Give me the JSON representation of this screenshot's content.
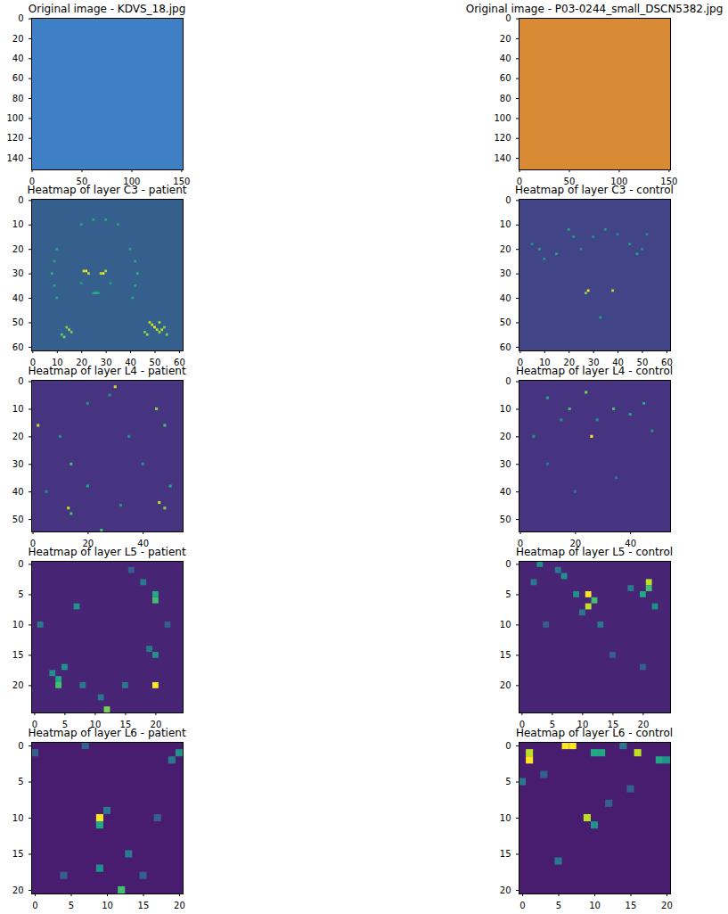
{
  "chart_data": [
    {
      "type": "image",
      "title": "Original image - KDVS_18.jpg",
      "color": "#3f7fc4",
      "xlim": [
        -0.5,
        151.5
      ],
      "ylim": [
        151.5,
        -0.5
      ],
      "xticks": [
        0,
        50,
        100,
        150
      ],
      "yticks": [
        0,
        20,
        40,
        60,
        80,
        100,
        120,
        140
      ]
    },
    {
      "type": "image",
      "title": "Original image - P03-0244_small_DSCN5382.jpg",
      "color": "#d98a35",
      "xlim": [
        -0.5,
        151.5
      ],
      "ylim": [
        151.5,
        -0.5
      ],
      "xticks": [
        0,
        50,
        100,
        150
      ],
      "yticks": [
        0,
        20,
        40,
        60,
        80,
        100,
        120,
        140
      ]
    },
    {
      "type": "heatmap",
      "title": "Heatmap of layer C3 - patient",
      "xlim": [
        -0.5,
        61.5
      ],
      "ylim": [
        61.5,
        -0.5
      ],
      "xticks": [
        0,
        10,
        20,
        30,
        40,
        50,
        60
      ],
      "yticks": [
        0,
        10,
        20,
        30,
        40,
        50,
        60
      ],
      "vlim": [
        0,
        1
      ],
      "fill_value": 0.3,
      "cells": [
        [
          21,
          29,
          0.95
        ],
        [
          22,
          29,
          1
        ],
        [
          23,
          30,
          0.9
        ],
        [
          28,
          30,
          0.9
        ],
        [
          29,
          30,
          1
        ],
        [
          30,
          29,
          0.85
        ],
        [
          25,
          38,
          0.6
        ],
        [
          26,
          38,
          0.65
        ],
        [
          27,
          38,
          0.6
        ],
        [
          48,
          50,
          0.9
        ],
        [
          49,
          51,
          0.95
        ],
        [
          50,
          52,
          1
        ],
        [
          51,
          53,
          0.9
        ],
        [
          52,
          54,
          0.85
        ],
        [
          53,
          53,
          0.9
        ],
        [
          54,
          52,
          0.8
        ],
        [
          52,
          50,
          0.85
        ],
        [
          55,
          55,
          0.8
        ],
        [
          46,
          54,
          0.8
        ],
        [
          47,
          55,
          0.85
        ],
        [
          14,
          52,
          0.8
        ],
        [
          15,
          53,
          0.85
        ],
        [
          16,
          54,
          0.8
        ],
        [
          12,
          55,
          0.75
        ],
        [
          13,
          56,
          0.8
        ],
        [
          10,
          20,
          0.6
        ],
        [
          9,
          25,
          0.6
        ],
        [
          8,
          30,
          0.65
        ],
        [
          9,
          35,
          0.6
        ],
        [
          10,
          40,
          0.6
        ],
        [
          40,
          20,
          0.6
        ],
        [
          42,
          25,
          0.6
        ],
        [
          43,
          30,
          0.65
        ],
        [
          42,
          35,
          0.6
        ],
        [
          41,
          40,
          0.6
        ],
        [
          20,
          10,
          0.6
        ],
        [
          25,
          8,
          0.6
        ],
        [
          30,
          8,
          0.6
        ],
        [
          35,
          10,
          0.6
        ],
        [
          20,
          34,
          0.55
        ],
        [
          32,
          34,
          0.55
        ]
      ]
    },
    {
      "type": "heatmap",
      "title": "Heatmap of layer C3 - control",
      "xlim": [
        -0.5,
        61.5
      ],
      "ylim": [
        61.5,
        -0.5
      ],
      "xticks": [
        0,
        10,
        20,
        30,
        40,
        50,
        60
      ],
      "yticks": [
        0,
        10,
        20,
        30,
        40,
        50,
        60
      ],
      "vlim": [
        0,
        1
      ],
      "fill_value": 0.2,
      "cells": [
        [
          20,
          12,
          0.6
        ],
        [
          22,
          15,
          0.55
        ],
        [
          25,
          20,
          0.5
        ],
        [
          15,
          22,
          0.6
        ],
        [
          10,
          24,
          0.55
        ],
        [
          30,
          15,
          0.5
        ],
        [
          35,
          12,
          0.55
        ],
        [
          40,
          14,
          0.5
        ],
        [
          45,
          18,
          0.55
        ],
        [
          48,
          22,
          0.6
        ],
        [
          50,
          20,
          0.5
        ],
        [
          52,
          14,
          0.5
        ],
        [
          5,
          18,
          0.5
        ],
        [
          8,
          20,
          0.6
        ],
        [
          28,
          37,
          1
        ],
        [
          38,
          37,
          0.9
        ],
        [
          27,
          38,
          0.8
        ],
        [
          33,
          48,
          0.6
        ]
      ]
    },
    {
      "type": "heatmap",
      "title": "Heatmap of layer L4 - patient",
      "xlim": [
        -0.5,
        54.5
      ],
      "ylim": [
        54.5,
        -0.5
      ],
      "xticks": [
        0,
        20,
        40
      ],
      "yticks": [
        0,
        10,
        20,
        30,
        40,
        50
      ],
      "vlim": [
        0,
        1
      ],
      "fill_value": 0.15,
      "cells": [
        [
          30,
          2,
          0.9
        ],
        [
          45,
          10,
          0.8
        ],
        [
          2,
          16,
          0.9
        ],
        [
          48,
          16,
          0.7
        ],
        [
          14,
          30,
          0.7
        ],
        [
          20,
          38,
          0.6
        ],
        [
          13,
          46,
          0.9
        ],
        [
          46,
          44,
          0.9
        ],
        [
          48,
          46,
          0.8
        ],
        [
          14,
          48,
          0.7
        ],
        [
          25,
          54,
          0.7
        ],
        [
          10,
          20,
          0.5
        ],
        [
          40,
          30,
          0.5
        ],
        [
          35,
          20,
          0.5
        ],
        [
          5,
          40,
          0.5
        ],
        [
          50,
          38,
          0.6
        ],
        [
          28,
          5,
          0.5
        ],
        [
          20,
          8,
          0.5
        ],
        [
          32,
          45,
          0.5
        ]
      ]
    },
    {
      "type": "heatmap",
      "title": "Heatmap of layer L4 - control",
      "xlim": [
        -0.5,
        54.5
      ],
      "ylim": [
        54.5,
        -0.5
      ],
      "xticks": [
        0,
        20,
        40
      ],
      "yticks": [
        0,
        10,
        20,
        30,
        40,
        50
      ],
      "vlim": [
        0,
        1
      ],
      "fill_value": 0.15,
      "cells": [
        [
          26,
          20,
          1
        ],
        [
          24,
          4,
          0.8
        ],
        [
          10,
          6,
          0.6
        ],
        [
          18,
          10,
          0.7
        ],
        [
          34,
          10,
          0.7
        ],
        [
          45,
          8,
          0.6
        ],
        [
          40,
          12,
          0.6
        ],
        [
          15,
          14,
          0.5
        ],
        [
          28,
          14,
          0.5
        ],
        [
          5,
          20,
          0.5
        ],
        [
          48,
          18,
          0.5
        ],
        [
          20,
          40,
          0.4
        ],
        [
          35,
          35,
          0.4
        ],
        [
          10,
          30,
          0.4
        ]
      ]
    },
    {
      "type": "heatmap",
      "title": "Heatmap of layer L5 - patient",
      "xlim": [
        -0.5,
        24.5
      ],
      "ylim": [
        24.5,
        -0.5
      ],
      "xticks": [
        0,
        5,
        10,
        15,
        20
      ],
      "yticks": [
        0,
        5,
        10,
        15,
        20
      ],
      "vlim": [
        0,
        1
      ],
      "fill_value": 0.1,
      "cells": [
        [
          20,
          5,
          0.6
        ],
        [
          20,
          6,
          0.7
        ],
        [
          20,
          20,
          1
        ],
        [
          12,
          24,
          0.8
        ],
        [
          4,
          19,
          0.6
        ],
        [
          4,
          20,
          0.7
        ],
        [
          3,
          18,
          0.5
        ],
        [
          5,
          17,
          0.5
        ],
        [
          20,
          15,
          0.5
        ],
        [
          19,
          14,
          0.4
        ],
        [
          7,
          7,
          0.5
        ],
        [
          18,
          3,
          0.4
        ],
        [
          1,
          10,
          0.4
        ],
        [
          11,
          22,
          0.4
        ],
        [
          8,
          20,
          0.4
        ],
        [
          15,
          20,
          0.4
        ],
        [
          22,
          10,
          0.3
        ],
        [
          16,
          1,
          0.3
        ]
      ]
    },
    {
      "type": "heatmap",
      "title": "Heatmap of layer L5 - control",
      "xlim": [
        -0.5,
        24.5
      ],
      "ylim": [
        24.5,
        -0.5
      ],
      "xticks": [
        0,
        5,
        10,
        15,
        20
      ],
      "yticks": [
        0,
        5,
        10,
        15,
        20
      ],
      "vlim": [
        0,
        1
      ],
      "fill_value": 0.1,
      "cells": [
        [
          11,
          5,
          1
        ],
        [
          11,
          7,
          0.9
        ],
        [
          12,
          6,
          0.7
        ],
        [
          21,
          3,
          0.9
        ],
        [
          20,
          5,
          0.6
        ],
        [
          21,
          4,
          0.7
        ],
        [
          3,
          0,
          0.5
        ],
        [
          7,
          2,
          0.5
        ],
        [
          6,
          1,
          0.4
        ],
        [
          2,
          3,
          0.4
        ],
        [
          9,
          5,
          0.5
        ],
        [
          10,
          8,
          0.4
        ],
        [
          13,
          10,
          0.4
        ],
        [
          4,
          10,
          0.3
        ],
        [
          22,
          7,
          0.5
        ],
        [
          18,
          4,
          0.4
        ],
        [
          15,
          15,
          0.3
        ],
        [
          20,
          17,
          0.3
        ]
      ]
    },
    {
      "type": "heatmap",
      "title": "Heatmap of layer L6 - patient",
      "xlim": [
        -0.5,
        20.5
      ],
      "ylim": [
        20.5,
        -0.5
      ],
      "xticks": [
        0,
        5,
        10,
        15,
        20
      ],
      "yticks": [
        0,
        5,
        10,
        15,
        20
      ],
      "vlim": [
        0,
        1
      ],
      "fill_value": 0.08,
      "cells": [
        [
          9,
          10,
          1
        ],
        [
          9,
          11,
          0.6
        ],
        [
          12,
          20,
          0.7
        ],
        [
          9,
          17,
          0.5
        ],
        [
          20,
          1,
          0.5
        ],
        [
          19,
          2,
          0.4
        ],
        [
          10,
          9,
          0.4
        ],
        [
          13,
          15,
          0.4
        ],
        [
          4,
          18,
          0.3
        ],
        [
          17,
          10,
          0.3
        ],
        [
          0,
          1,
          0.3
        ],
        [
          7,
          0,
          0.3
        ],
        [
          15,
          18,
          0.3
        ]
      ]
    },
    {
      "type": "heatmap",
      "title": "Heatmap of layer L6 - control",
      "xlim": [
        -0.5,
        20.5
      ],
      "ylim": [
        20.5,
        -0.5
      ],
      "xticks": [
        0,
        5,
        10,
        15,
        20
      ],
      "yticks": [
        0,
        5,
        10,
        15,
        20
      ],
      "vlim": [
        0,
        1
      ],
      "fill_value": 0.08,
      "cells": [
        [
          6,
          0,
          1
        ],
        [
          7,
          0,
          1
        ],
        [
          1,
          1,
          0.9
        ],
        [
          1,
          2,
          1
        ],
        [
          16,
          1,
          0.9
        ],
        [
          10,
          1,
          0.6
        ],
        [
          11,
          1,
          0.6
        ],
        [
          14,
          0,
          0.4
        ],
        [
          19,
          2,
          0.6
        ],
        [
          20,
          2,
          0.5
        ],
        [
          9,
          10,
          0.9
        ],
        [
          10,
          11,
          0.5
        ],
        [
          0,
          5,
          0.4
        ],
        [
          5,
          16,
          0.4
        ],
        [
          12,
          8,
          0.3
        ],
        [
          3,
          4,
          0.3
        ],
        [
          15,
          6,
          0.3
        ]
      ]
    }
  ]
}
